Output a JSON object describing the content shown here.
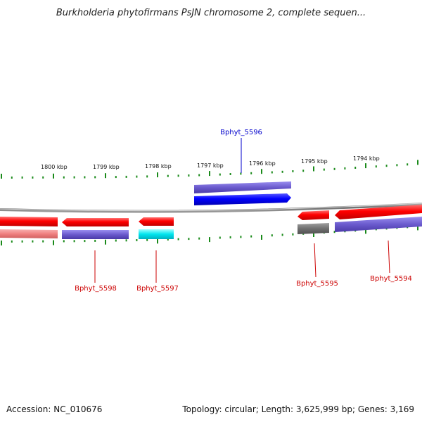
{
  "title": "Burkholderia phytofirmans PsJN chromosome 2, complete sequen...",
  "footer": {
    "accession": "Accession: NC_010676",
    "summary": "Topology: circular; Length: 3,625,999 bp; Genes: 3,169"
  },
  "scale_labels": [
    "1800 kbp",
    "1799 kbp",
    "1798 kbp",
    "1797 kbp",
    "1796 kbp",
    "1795 kbp",
    "1794 kbp"
  ],
  "genes": [
    {
      "id": "Bphyt_5596",
      "label": "Bphyt_5596",
      "label_color": "#0000cc"
    },
    {
      "id": "Bphyt_5598",
      "label": "Bphyt_5598",
      "label_color": "#cc0000"
    },
    {
      "id": "Bphyt_5597",
      "label": "Bphyt_5597",
      "label_color": "#cc0000"
    },
    {
      "id": "Bphyt_5595",
      "label": "Bphyt_5595",
      "label_color": "#cc0000"
    },
    {
      "id": "Bphyt_5594",
      "label": "Bphyt_5594",
      "label_color": "#cc0000"
    }
  ],
  "colors": {
    "backbone": "#7a7a7a",
    "tick": "#1a8a1a",
    "cds_red": "#ff0000",
    "cds_blue": "#0000ff",
    "feature_purple": "#6a5acd",
    "feature_cyan": "#00e5ee",
    "feature_gray": "#707070",
    "feature_pink": "#f08080",
    "callout_red": "#cc0000",
    "callout_blue": "#0000cc"
  }
}
